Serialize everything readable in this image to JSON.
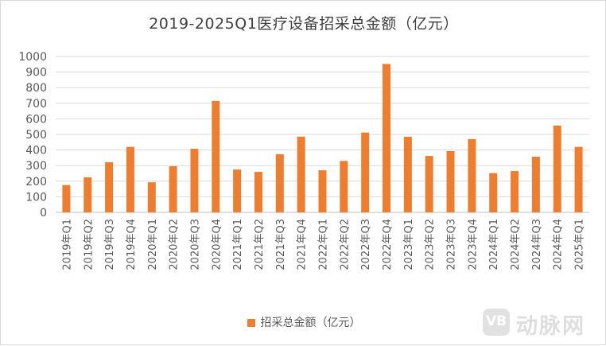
{
  "chart_data": {
    "type": "bar",
    "title": "2019-2025Q1医疗设备招采总金额（亿元）",
    "categories": [
      "2019年Q1",
      "2019年Q2",
      "2019年Q3",
      "2019年Q4",
      "2020年Q1",
      "2020年Q2",
      "2020年Q3",
      "2020年Q4",
      "2021年Q1",
      "2021年Q2",
      "2021年Q3",
      "2021年Q4",
      "2022年Q1",
      "2022年Q2",
      "2022年Q3",
      "2022年Q4",
      "2023年Q1",
      "2023年Q2",
      "2023年Q3",
      "2023年Q4",
      "2024年Q1",
      "2024年Q2",
      "2024年Q3",
      "2024年Q4",
      "2025年Q1"
    ],
    "series": [
      {
        "name": "招采总金额（亿元）",
        "color": "#ED7D31",
        "values": [
          175,
          225,
          322,
          420,
          193,
          296,
          408,
          715,
          275,
          260,
          373,
          486,
          270,
          330,
          512,
          952,
          485,
          362,
          393,
          470,
          252,
          265,
          357,
          557,
          420
        ]
      }
    ],
    "ylim": [
      0,
      1000
    ],
    "yticks": [
      0,
      100,
      200,
      300,
      400,
      500,
      600,
      700,
      800,
      900,
      1000
    ],
    "xlabel": "",
    "ylabel": "",
    "grid": true,
    "legend": "bottom"
  },
  "watermark": {
    "logo": "VB",
    "text": "动脉网"
  }
}
